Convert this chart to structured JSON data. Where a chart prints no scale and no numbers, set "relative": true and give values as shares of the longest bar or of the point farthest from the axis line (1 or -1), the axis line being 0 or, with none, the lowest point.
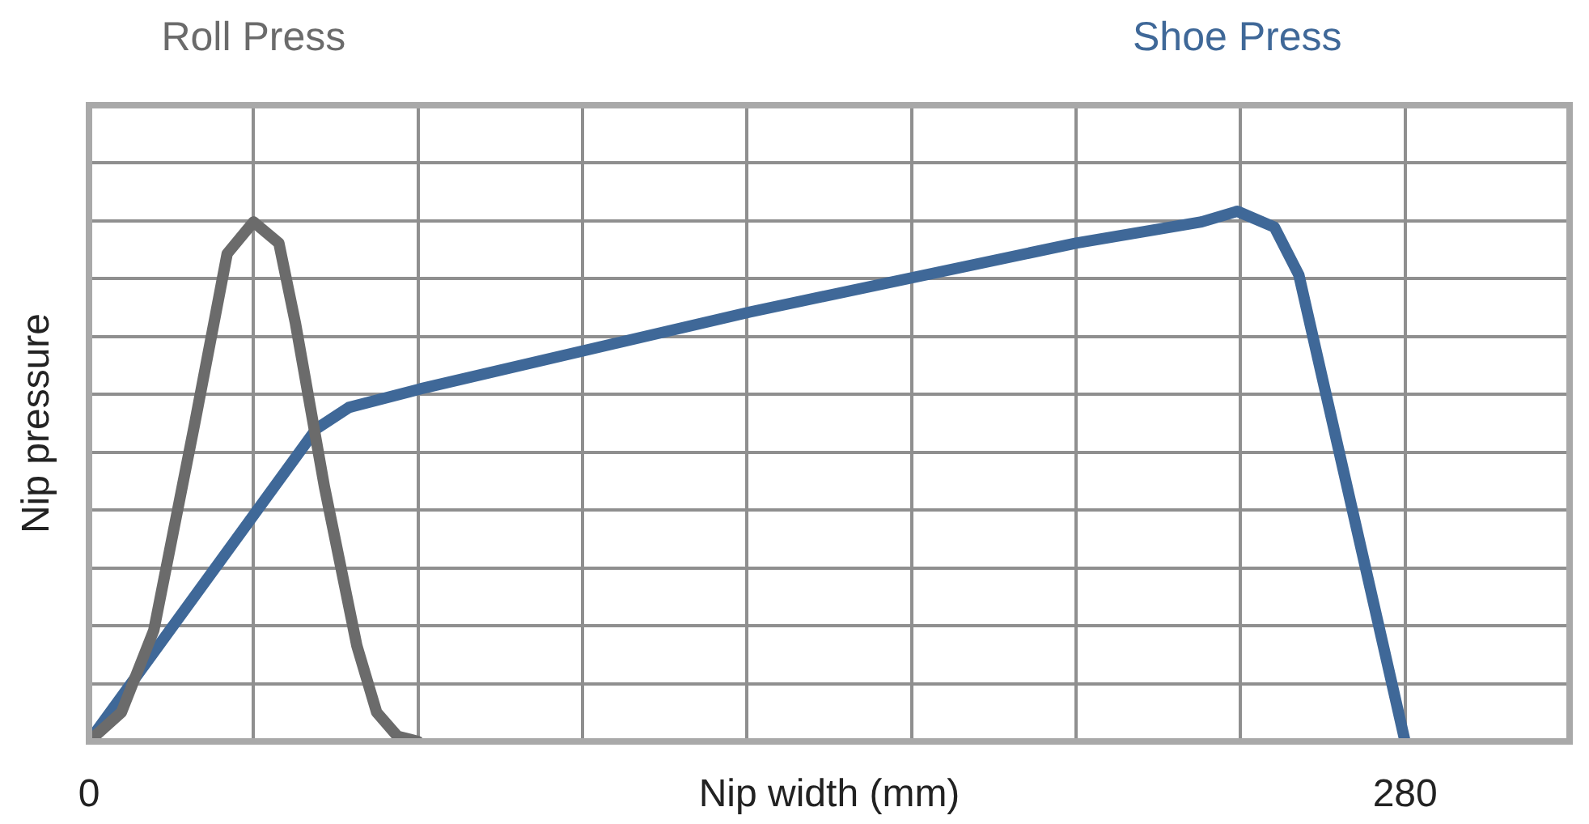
{
  "chart_data": {
    "type": "line",
    "xlabel": "Nip width (mm)",
    "ylabel": "Nip pressure",
    "relative": true,
    "xlim": [
      0,
      315
    ],
    "xticks": [
      0,
      {
        "value": 35,
        "label": null
      },
      {
        "value": 70,
        "label": null
      },
      {
        "value": 105,
        "label": null
      },
      {
        "value": 140,
        "label": null
      },
      {
        "value": 175,
        "label": null
      },
      {
        "value": 210,
        "label": null
      },
      {
        "value": 245,
        "label": null
      },
      280
    ],
    "grid": true,
    "legend": "top",
    "marker": "none",
    "line_style": "solid",
    "series": [
      {
        "name": "Roll Press",
        "color": "#6b6b6b",
        "x": [
          0,
          6.9,
          13.8,
          22.5,
          29.4,
          35,
          40.4,
          43.9,
          50.1,
          57,
          61.2,
          65.6,
          70
        ],
        "values": [
          0,
          0.055,
          0.21,
          0.6,
          0.92,
          0.98,
          0.94,
          0.79,
          0.48,
          0.18,
          0.055,
          0.01,
          0
        ]
      },
      {
        "name": "Shoe Press",
        "color": "#3f6898",
        "x": [
          0,
          48.4,
          55.3,
          70.5,
          140.6,
          210,
          236.7,
          244.3,
          252.2,
          257.4,
          280
        ],
        "values": [
          0,
          0.59,
          0.63,
          0.665,
          0.81,
          0.94,
          0.98,
          1,
          0.97,
          0.88,
          0
        ]
      }
    ]
  }
}
